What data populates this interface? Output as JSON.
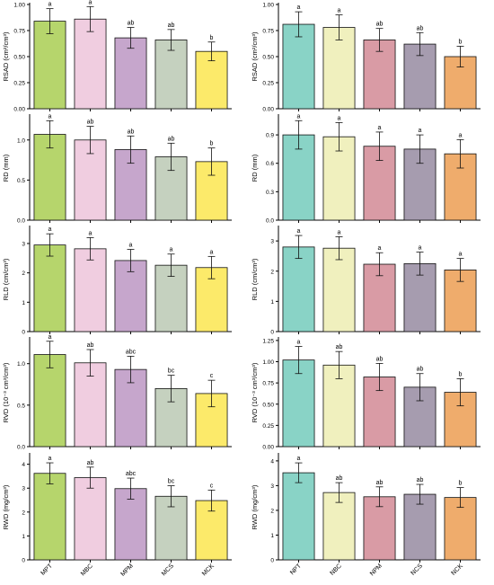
{
  "chart_data": [
    {
      "type": "bar",
      "ylabel": "RSAD (cm²/cm³)",
      "ylim": [
        0,
        1.0
      ],
      "yticks": [
        "0.00",
        "0.25",
        "0.50",
        "0.75",
        "1.00"
      ],
      "categories": [
        "MPT",
        "MBC",
        "MPM",
        "MCS",
        "MCK"
      ],
      "values": [
        0.84,
        0.86,
        0.68,
        0.66,
        0.55
      ],
      "errors": [
        0.12,
        0.12,
        0.1,
        0.1,
        0.09
      ],
      "letters": [
        "a",
        "a",
        "ab",
        "ab",
        "b"
      ],
      "colors": [
        "#b6d56c",
        "#f0cde0",
        "#c6a6cc",
        "#c5d1bf",
        "#fcea6a"
      ],
      "xlabels_shown": false
    },
    {
      "type": "bar",
      "ylabel": "RSAD (cm²/cm³)",
      "ylim": [
        0,
        1.0
      ],
      "yticks": [
        "0.00",
        "0.25",
        "0.50",
        "0.75",
        "1.00"
      ],
      "categories": [
        "NPT",
        "NBC",
        "NPM",
        "NCS",
        "NCK"
      ],
      "values": [
        0.81,
        0.78,
        0.66,
        0.62,
        0.5
      ],
      "errors": [
        0.12,
        0.12,
        0.11,
        0.11,
        0.1
      ],
      "letters": [
        "a",
        "a",
        "ab",
        "ab",
        "b"
      ],
      "colors": [
        "#89d3c6",
        "#f0f0be",
        "#d99ba5",
        "#a69caf",
        "#efac6c"
      ],
      "xlabels_shown": false
    },
    {
      "type": "bar",
      "ylabel": "RD (mm)",
      "ylim": [
        0,
        1.3
      ],
      "yticks": [
        "0.0",
        "0.5",
        "1.0"
      ],
      "categories": [
        "MPT",
        "MBC",
        "MPM",
        "MCS",
        "MCK"
      ],
      "values": [
        1.07,
        1.0,
        0.88,
        0.79,
        0.73
      ],
      "errors": [
        0.17,
        0.17,
        0.17,
        0.17,
        0.17
      ],
      "letters": [
        "a",
        "ab",
        "ab",
        "ab",
        "b"
      ],
      "colors": [
        "#b6d56c",
        "#f0cde0",
        "#c6a6cc",
        "#c5d1bf",
        "#fcea6a"
      ],
      "xlabels_shown": false
    },
    {
      "type": "bar",
      "ylabel": "RD (mm)",
      "ylim": [
        0,
        1.1
      ],
      "yticks": [
        "0.0",
        "0.3",
        "0.6",
        "0.9"
      ],
      "categories": [
        "NPT",
        "NBC",
        "NPM",
        "NCS",
        "NCK"
      ],
      "values": [
        0.9,
        0.88,
        0.78,
        0.75,
        0.7
      ],
      "errors": [
        0.15,
        0.15,
        0.15,
        0.15,
        0.15
      ],
      "letters": [
        "a",
        "a",
        "a",
        "a",
        "a"
      ],
      "colors": [
        "#89d3c6",
        "#f0f0be",
        "#d99ba5",
        "#a69caf",
        "#efac6c"
      ],
      "xlabels_shown": false
    },
    {
      "type": "bar",
      "ylabel": "RLD (cm/cm³)",
      "ylim": [
        0,
        3.55
      ],
      "yticks": [
        "0",
        "1",
        "2",
        "3"
      ],
      "categories": [
        "MPT",
        "MBC",
        "MPM",
        "MCS",
        "MCK"
      ],
      "values": [
        2.95,
        2.82,
        2.42,
        2.26,
        2.18
      ],
      "errors": [
        0.38,
        0.38,
        0.38,
        0.38,
        0.38
      ],
      "letters": [
        "a",
        "a",
        "a",
        "a",
        "a"
      ],
      "colors": [
        "#b6d56c",
        "#f0cde0",
        "#c6a6cc",
        "#c5d1bf",
        "#fcea6a"
      ],
      "xlabels_shown": false
    },
    {
      "type": "bar",
      "ylabel": "RLD (cm/cm³)",
      "ylim": [
        0,
        3.45
      ],
      "yticks": [
        "0",
        "1",
        "2",
        "3"
      ],
      "categories": [
        "NPT",
        "NBC",
        "NPM",
        "NCS",
        "NCK"
      ],
      "values": [
        2.8,
        2.76,
        2.23,
        2.25,
        2.04
      ],
      "errors": [
        0.38,
        0.38,
        0.38,
        0.38,
        0.38
      ],
      "letters": [
        "a",
        "a",
        "a",
        "a",
        "a"
      ],
      "colors": [
        "#89d3c6",
        "#f0f0be",
        "#d99ba5",
        "#a69caf",
        "#efac6c"
      ],
      "xlabels_shown": false
    },
    {
      "type": "bar",
      "ylabel": "RVD (10⁻³ cm³/cm³)",
      "ylim": [
        0,
        1.3
      ],
      "yticks": [
        "0.0",
        "0.5",
        "1.0"
      ],
      "categories": [
        "MPT",
        "MBC",
        "MPM",
        "MCS",
        "MCK"
      ],
      "values": [
        1.11,
        1.01,
        0.93,
        0.7,
        0.64
      ],
      "errors": [
        0.16,
        0.16,
        0.16,
        0.16,
        0.16
      ],
      "letters": [
        "a",
        "ab",
        "abc",
        "bc",
        "c"
      ],
      "colors": [
        "#b6d56c",
        "#f0cde0",
        "#c6a6cc",
        "#c5d1bf",
        "#fcea6a"
      ],
      "xlabels_shown": false
    },
    {
      "type": "bar",
      "ylabel": "RVD (10⁻³ cm³/cm³)",
      "ylim": [
        0,
        1.27
      ],
      "yticks": [
        "0.00",
        "0.25",
        "0.50",
        "0.75",
        "1.00",
        "1.25"
      ],
      "categories": [
        "NPT",
        "NBC",
        "NPM",
        "NCS",
        "NCK"
      ],
      "values": [
        1.02,
        0.96,
        0.82,
        0.7,
        0.64
      ],
      "errors": [
        0.16,
        0.16,
        0.16,
        0.16,
        0.16
      ],
      "letters": [
        "a",
        "ab",
        "ab",
        "ab",
        "b"
      ],
      "colors": [
        "#89d3c6",
        "#f0f0be",
        "#d99ba5",
        "#a69caf",
        "#efac6c"
      ],
      "xlabels_shown": false
    },
    {
      "type": "bar",
      "ylabel": "RWD (mg/cm³)",
      "ylim": [
        0,
        4.4
      ],
      "yticks": [
        "0",
        "1",
        "2",
        "3",
        "4"
      ],
      "categories": [
        "MPT",
        "MBC",
        "MPM",
        "MCS",
        "MCK"
      ],
      "values": [
        3.62,
        3.44,
        2.98,
        2.66,
        2.48
      ],
      "errors": [
        0.44,
        0.44,
        0.44,
        0.44,
        0.44
      ],
      "letters": [
        "a",
        "ab",
        "abc",
        "bc",
        "c"
      ],
      "colors": [
        "#b6d56c",
        "#f0cde0",
        "#c6a6cc",
        "#c5d1bf",
        "#fcea6a"
      ],
      "xlabels_shown": true
    },
    {
      "type": "bar",
      "ylabel": "RWD (mg/cm³)",
      "ylim": [
        0,
        4.25
      ],
      "yticks": [
        "0",
        "1",
        "2",
        "3",
        "4"
      ],
      "categories": [
        "NPT",
        "NBC",
        "NPM",
        "NCS",
        "NCK"
      ],
      "values": [
        3.52,
        2.72,
        2.55,
        2.65,
        2.52
      ],
      "errors": [
        0.4,
        0.4,
        0.4,
        0.4,
        0.4
      ],
      "letters": [
        "a",
        "ab",
        "ab",
        "ab",
        "b"
      ],
      "colors": [
        "#89d3c6",
        "#f0f0be",
        "#d99ba5",
        "#a69caf",
        "#efac6c"
      ],
      "xlabels_shown": true
    }
  ]
}
